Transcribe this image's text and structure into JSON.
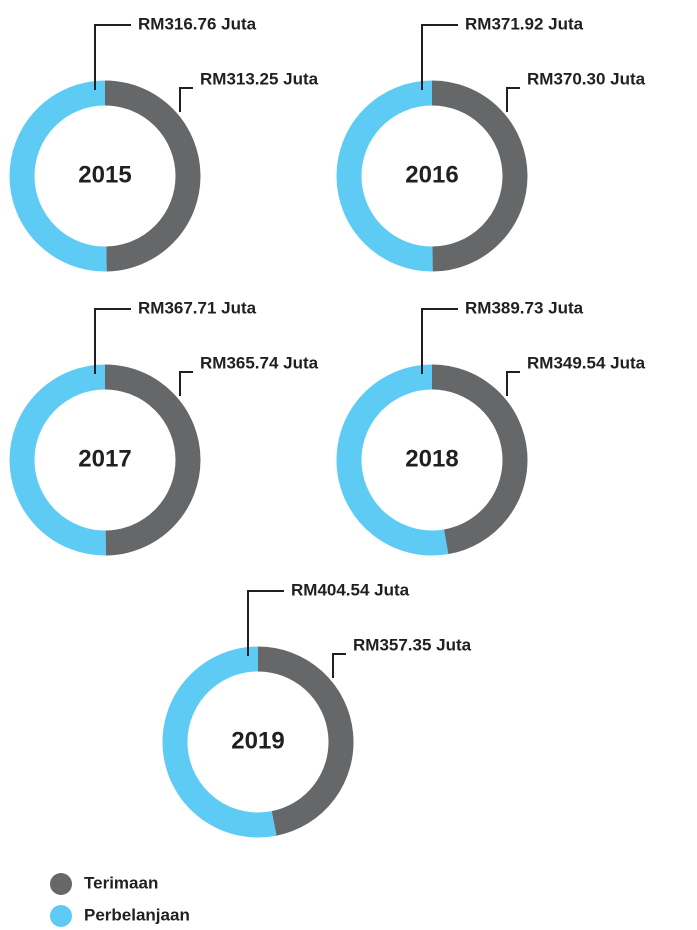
{
  "legend": [
    {
      "name": "Terimaan",
      "color": "#666769"
    },
    {
      "name": "Perbelanjaan",
      "color": "#5ecbf5"
    }
  ],
  "chart_data": [
    {
      "type": "pie",
      "title": "2015",
      "values": [
        313.25,
        316.76
      ],
      "value_labels": [
        "RM313.25 Juta",
        "RM316.76 Juta"
      ]
    },
    {
      "type": "pie",
      "title": "2016",
      "values": [
        370.3,
        371.92
      ],
      "value_labels": [
        "RM370.30 Juta",
        "RM371.92 Juta"
      ]
    },
    {
      "type": "pie",
      "title": "2017",
      "values": [
        365.74,
        367.71
      ],
      "value_labels": [
        "RM365.74 Juta",
        "RM367.71 Juta"
      ]
    },
    {
      "type": "pie",
      "title": "2018",
      "values": [
        349.54,
        389.73
      ],
      "value_labels": [
        "RM349.54 Juta",
        "RM389.73 Juta"
      ]
    },
    {
      "type": "pie",
      "title": "2019",
      "values": [
        357.35,
        404.54
      ],
      "value_labels": [
        "RM357.35 Juta",
        "RM404.54 Juta"
      ]
    }
  ]
}
